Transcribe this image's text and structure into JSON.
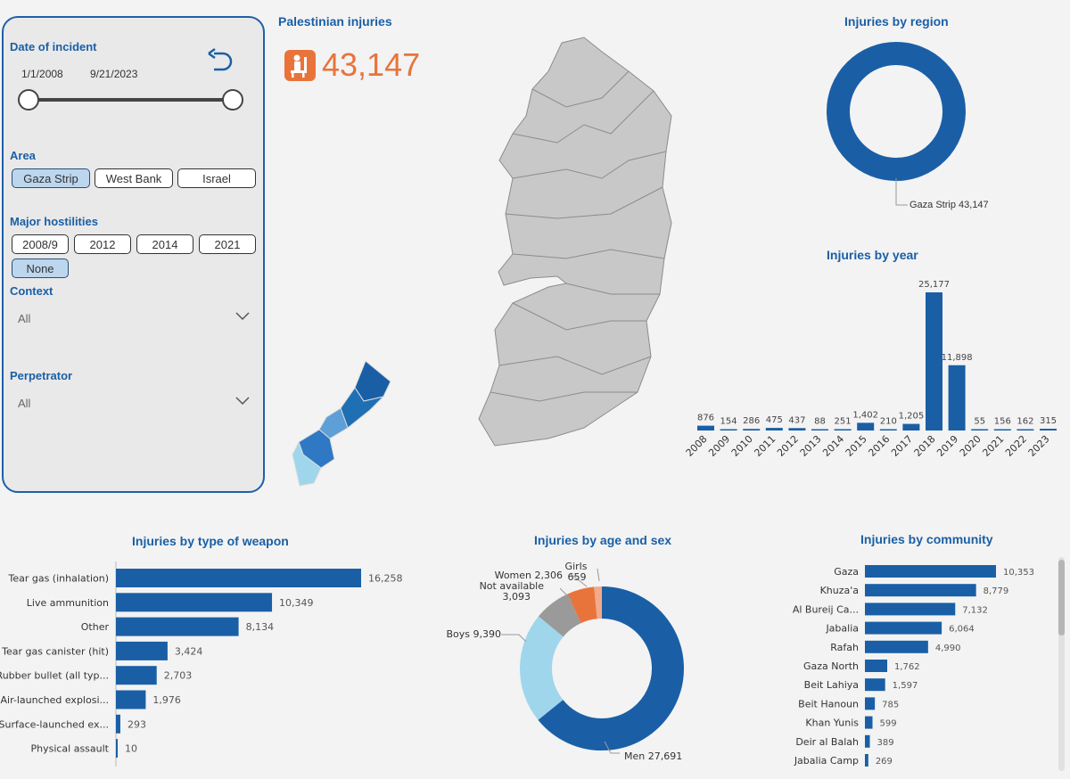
{
  "header": {
    "kpi_title": "Palestinian injuries",
    "kpi_value": "43,147",
    "kpi_icon": "injured-person-icon"
  },
  "filters": {
    "date_label": "Date of incident",
    "date_start": "1/1/2008",
    "date_end": "9/21/2023",
    "area_label": "Area",
    "areas": [
      "Gaza Strip",
      "West Bank",
      "Israel"
    ],
    "area_selected": "Gaza Strip",
    "hostilities_label": "Major hostilities",
    "hostilities": [
      "2008/9",
      "2012",
      "2014",
      "2021",
      "None"
    ],
    "hostilities_selected": "None",
    "context_label": "Context",
    "context_value": "All",
    "perpetrator_label": "Perpetrator",
    "perpetrator_value": "All"
  },
  "region_chart": {
    "title": "Injuries by region",
    "label": "Gaza Strip 43,147",
    "color": "#1a5fa6"
  },
  "chart_data": [
    {
      "type": "bar",
      "title": "Injuries by year",
      "categories": [
        "2008",
        "2009",
        "2010",
        "2011",
        "2012",
        "2013",
        "2014",
        "2015",
        "2016",
        "2017",
        "2018",
        "2019",
        "2020",
        "2021",
        "2022",
        "2023"
      ],
      "values": [
        876,
        154,
        286,
        475,
        437,
        88,
        251,
        1402,
        210,
        1205,
        25177,
        11898,
        55,
        156,
        162,
        315
      ],
      "value_labels": [
        "876",
        "154",
        "286",
        "475",
        "437",
        "88",
        "251",
        "1,402",
        "210",
        "1,205",
        "25,177",
        "11,898",
        "55",
        "156",
        "162",
        "315"
      ],
      "color": "#1a5fa6"
    },
    {
      "type": "bar",
      "orientation": "horizontal",
      "title": "Injuries by type of weapon",
      "categories": [
        "Tear gas (inhalation)",
        "Live ammunition",
        "Other",
        "Tear gas canister (hit)",
        "Rubber bullet (all typ...",
        "Air-launched explosi...",
        "Surface-launched ex...",
        "Physical assault"
      ],
      "values": [
        16258,
        10349,
        8134,
        3424,
        2703,
        1976,
        293,
        10
      ],
      "value_labels": [
        "16,258",
        "10,349",
        "8,134",
        "3,424",
        "2,703",
        "1,976",
        "293",
        "10"
      ],
      "color": "#1a5fa6"
    },
    {
      "type": "pie",
      "title": "Injuries by age and sex",
      "categories": [
        "Men",
        "Boys",
        "Not available",
        "Women",
        "Girls"
      ],
      "values": [
        27691,
        9390,
        3093,
        2306,
        659
      ],
      "labels": [
        "Men 27,691",
        "Boys 9,390",
        "Not available",
        "3,093",
        "Women 2,306",
        "Girls",
        "659"
      ],
      "colors": [
        "#1a5fa6",
        "#9fd6ec",
        "#9a9a9a",
        "#e8743b",
        "#f3a98a"
      ]
    },
    {
      "type": "bar",
      "orientation": "horizontal",
      "title": "Injuries by community",
      "categories": [
        "Gaza",
        "Khuza'a",
        "Al Bureij Ca...",
        "Jabalia",
        "Rafah",
        "Gaza North",
        "Beit Lahiya",
        "Beit Hanoun",
        "Khan Yunis",
        "Deir al Balah",
        "Jabalia Camp"
      ],
      "values": [
        10353,
        8779,
        7132,
        6064,
        4990,
        1762,
        1597,
        785,
        599,
        389,
        269
      ],
      "value_labels": [
        "10,353",
        "8,779",
        "7,132",
        "6,064",
        "4,990",
        "1,762",
        "1,597",
        "785",
        "599",
        "389",
        "269"
      ],
      "color": "#1a5fa6"
    }
  ],
  "icons": {
    "reset": "reset-arrow-icon",
    "chevron": "chevron-down-icon"
  }
}
